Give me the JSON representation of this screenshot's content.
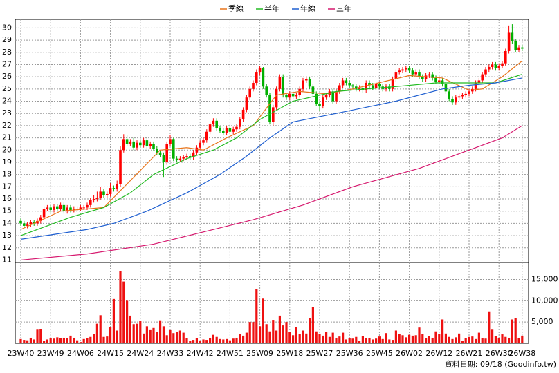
{
  "chart_data": {
    "type": "candlestick",
    "up_color": "#ff0000",
    "down_color": "#00b000",
    "grid": true,
    "ylim": [
      10.8,
      30.7
    ],
    "yticks": [
      11,
      12,
      13,
      14,
      15,
      16,
      17,
      18,
      19,
      20,
      21,
      22,
      23,
      24,
      25,
      26,
      27,
      28,
      29,
      30
    ],
    "note": "資料日期: 09/18 (Goodinfo.tw)",
    "categories": [
      "23W40",
      null,
      null,
      null,
      null,
      null,
      null,
      null,
      null,
      "23W49",
      null,
      null,
      null,
      null,
      null,
      null,
      null,
      null,
      "24W06",
      null,
      null,
      null,
      null,
      null,
      null,
      null,
      null,
      "24W15",
      null,
      null,
      null,
      null,
      null,
      null,
      null,
      null,
      "24W24",
      null,
      null,
      null,
      null,
      null,
      null,
      null,
      null,
      "24W33",
      null,
      null,
      null,
      null,
      null,
      null,
      null,
      null,
      "24W42",
      null,
      null,
      null,
      null,
      null,
      null,
      null,
      null,
      "24W51",
      null,
      null,
      null,
      null,
      null,
      null,
      null,
      null,
      "25W09",
      null,
      null,
      null,
      null,
      null,
      null,
      null,
      null,
      "25W18",
      null,
      null,
      null,
      null,
      null,
      null,
      null,
      null,
      "25W27",
      null,
      null,
      null,
      null,
      null,
      null,
      null,
      null,
      "25W36",
      null,
      null,
      null,
      null,
      null,
      null,
      null,
      null,
      "25W45",
      null,
      null,
      null,
      null,
      null,
      null,
      null,
      null,
      "26W02",
      null,
      null,
      null,
      null,
      null,
      null,
      null,
      null,
      "26W12",
      null,
      null,
      null,
      null,
      null,
      null,
      null,
      null,
      "26W21",
      null,
      null,
      null,
      null,
      null,
      null,
      null,
      null,
      "26W30",
      null,
      null,
      null,
      null,
      null,
      null,
      "26W38"
    ],
    "ohlc": [
      [
        14.2,
        14.4,
        13.8,
        14.0
      ],
      [
        14.0,
        14.2,
        13.6,
        13.8
      ],
      [
        13.8,
        14.1,
        13.6,
        13.9
      ],
      [
        13.9,
        14.3,
        13.7,
        14.1
      ],
      [
        14.1,
        14.3,
        13.8,
        14.0
      ],
      [
        14.0,
        14.4,
        13.8,
        14.2
      ],
      [
        14.2,
        14.7,
        14.0,
        14.5
      ],
      [
        14.5,
        15.4,
        14.3,
        15.2
      ],
      [
        15.2,
        15.5,
        15.0,
        15.3
      ],
      [
        15.3,
        15.5,
        14.9,
        15.1
      ],
      [
        15.1,
        15.6,
        14.9,
        15.4
      ],
      [
        15.4,
        15.6,
        15.0,
        15.2
      ],
      [
        15.2,
        15.7,
        15.0,
        15.5
      ],
      [
        15.5,
        15.7,
        14.8,
        15.0
      ],
      [
        15.0,
        15.5,
        14.8,
        15.3
      ],
      [
        15.3,
        15.5,
        14.9,
        15.1
      ],
      [
        15.1,
        15.4,
        14.9,
        15.2
      ],
      [
        15.2,
        15.4,
        15.0,
        15.2
      ],
      [
        15.2,
        15.5,
        15.0,
        15.3
      ],
      [
        15.3,
        15.5,
        15.1,
        15.3
      ],
      [
        15.3,
        15.7,
        15.1,
        15.5
      ],
      [
        15.5,
        16.1,
        15.3,
        15.9
      ],
      [
        15.9,
        16.3,
        15.7,
        16.0
      ],
      [
        16.0,
        16.6,
        15.8,
        16.1
      ],
      [
        16.1,
        17.0,
        15.9,
        16.6
      ],
      [
        16.6,
        16.8,
        16.1,
        16.3
      ],
      [
        16.3,
        16.6,
        16.1,
        16.4
      ],
      [
        16.4,
        17.3,
        16.2,
        16.9
      ],
      [
        16.9,
        17.1,
        16.6,
        16.8
      ],
      [
        16.8,
        17.5,
        16.6,
        17.2
      ],
      [
        17.2,
        20.3,
        17.0,
        20.0
      ],
      [
        20.0,
        21.3,
        19.8,
        20.9
      ],
      [
        20.9,
        21.2,
        20.3,
        20.5
      ],
      [
        20.5,
        20.9,
        20.3,
        20.7
      ],
      [
        20.7,
        21.0,
        20.0,
        20.2
      ],
      [
        20.2,
        20.8,
        20.0,
        20.6
      ],
      [
        20.6,
        20.8,
        20.2,
        20.4
      ],
      [
        20.4,
        21.0,
        20.2,
        20.8
      ],
      [
        20.8,
        21.0,
        20.1,
        20.3
      ],
      [
        20.3,
        20.7,
        20.1,
        20.5
      ],
      [
        20.5,
        20.7,
        19.9,
        20.1
      ],
      [
        20.1,
        20.3,
        19.6,
        19.8
      ],
      [
        19.8,
        20.0,
        19.4,
        19.6
      ],
      [
        19.6,
        19.8,
        17.8,
        19.0
      ],
      [
        19.0,
        20.7,
        18.8,
        20.5
      ],
      [
        20.5,
        21.2,
        20.3,
        20.9
      ],
      [
        20.9,
        21.0,
        19.1,
        19.3
      ],
      [
        19.3,
        19.5,
        19.0,
        19.2
      ],
      [
        19.2,
        19.5,
        19.0,
        19.3
      ],
      [
        19.3,
        19.6,
        19.1,
        19.4
      ],
      [
        19.4,
        19.7,
        19.2,
        19.5
      ],
      [
        19.5,
        19.7,
        19.2,
        19.4
      ],
      [
        19.4,
        20.0,
        19.2,
        19.8
      ],
      [
        19.8,
        20.4,
        19.6,
        20.2
      ],
      [
        20.2,
        20.8,
        20.0,
        20.6
      ],
      [
        20.6,
        21.0,
        20.4,
        20.8
      ],
      [
        20.8,
        21.7,
        20.6,
        21.5
      ],
      [
        21.5,
        22.3,
        21.3,
        22.1
      ],
      [
        22.1,
        22.6,
        21.9,
        22.4
      ],
      [
        22.4,
        22.6,
        21.6,
        21.8
      ],
      [
        21.8,
        22.0,
        21.4,
        21.6
      ],
      [
        21.6,
        21.8,
        21.2,
        21.4
      ],
      [
        21.4,
        22.0,
        21.2,
        21.8
      ],
      [
        21.8,
        22.0,
        21.3,
        21.5
      ],
      [
        21.5,
        21.9,
        21.3,
        21.7
      ],
      [
        21.7,
        22.1,
        21.5,
        21.9
      ],
      [
        21.9,
        22.7,
        21.7,
        22.5
      ],
      [
        22.5,
        23.5,
        22.3,
        23.3
      ],
      [
        23.3,
        24.5,
        23.1,
        24.3
      ],
      [
        24.3,
        25.2,
        24.1,
        25.0
      ],
      [
        25.0,
        25.7,
        24.8,
        25.5
      ],
      [
        25.5,
        26.6,
        25.3,
        26.4
      ],
      [
        26.4,
        26.9,
        26.1,
        26.7
      ],
      [
        26.7,
        26.8,
        25.0,
        25.2
      ],
      [
        25.2,
        25.4,
        24.3,
        24.5
      ],
      [
        24.5,
        24.7,
        22.1,
        22.3
      ],
      [
        22.3,
        23.7,
        22.0,
        23.5
      ],
      [
        23.5,
        25.2,
        23.3,
        25.0
      ],
      [
        25.0,
        26.2,
        24.8,
        26.0
      ],
      [
        26.0,
        26.2,
        24.3,
        24.5
      ],
      [
        24.5,
        24.7,
        24.1,
        24.3
      ],
      [
        24.3,
        24.8,
        24.1,
        24.6
      ],
      [
        24.6,
        24.8,
        24.2,
        24.4
      ],
      [
        24.4,
        24.7,
        24.2,
        24.5
      ],
      [
        24.5,
        25.2,
        24.3,
        25.0
      ],
      [
        25.0,
        25.9,
        24.8,
        25.7
      ],
      [
        25.7,
        26.0,
        25.5,
        25.8
      ],
      [
        25.8,
        26.0,
        25.0,
        25.2
      ],
      [
        25.2,
        25.4,
        24.4,
        24.6
      ],
      [
        24.6,
        24.8,
        23.6,
        23.8
      ],
      [
        23.8,
        24.0,
        23.2,
        23.6
      ],
      [
        23.6,
        24.5,
        23.4,
        24.3
      ],
      [
        24.3,
        24.7,
        24.1,
        24.5
      ],
      [
        24.5,
        25.0,
        24.3,
        24.8
      ],
      [
        24.8,
        25.0,
        23.8,
        24.0
      ],
      [
        24.0,
        25.0,
        23.8,
        24.8
      ],
      [
        24.8,
        25.5,
        24.6,
        25.3
      ],
      [
        25.3,
        25.9,
        25.1,
        25.7
      ],
      [
        25.7,
        25.9,
        25.3,
        25.5
      ],
      [
        25.5,
        25.7,
        25.1,
        25.3
      ],
      [
        25.3,
        25.4,
        25.0,
        25.2
      ],
      [
        25.2,
        25.4,
        24.8,
        25.0
      ],
      [
        25.0,
        25.3,
        24.8,
        25.1
      ],
      [
        25.1,
        25.3,
        24.7,
        24.9
      ],
      [
        24.9,
        25.7,
        24.7,
        25.5
      ],
      [
        25.5,
        25.7,
        25.1,
        25.3
      ],
      [
        25.3,
        25.5,
        24.9,
        25.1
      ],
      [
        25.1,
        25.6,
        24.9,
        25.4
      ],
      [
        25.4,
        25.6,
        25.0,
        25.2
      ],
      [
        25.2,
        25.4,
        24.8,
        25.0
      ],
      [
        25.0,
        25.4,
        24.8,
        25.2
      ],
      [
        25.2,
        25.4,
        24.8,
        25.0
      ],
      [
        25.0,
        26.0,
        24.8,
        25.8
      ],
      [
        25.8,
        26.6,
        25.6,
        26.4
      ],
      [
        26.4,
        26.7,
        26.2,
        26.5
      ],
      [
        26.5,
        26.8,
        26.3,
        26.6
      ],
      [
        26.6,
        26.9,
        26.4,
        26.7
      ],
      [
        26.7,
        26.9,
        26.3,
        26.5
      ],
      [
        26.5,
        26.7,
        26.0,
        26.2
      ],
      [
        26.2,
        26.6,
        26.0,
        26.4
      ],
      [
        26.4,
        26.6,
        25.8,
        26.0
      ],
      [
        26.0,
        26.2,
        25.6,
        25.8
      ],
      [
        25.8,
        26.3,
        25.6,
        26.1
      ],
      [
        26.1,
        26.4,
        25.9,
        26.2
      ],
      [
        26.2,
        26.4,
        25.7,
        25.9
      ],
      [
        25.9,
        26.1,
        25.4,
        25.6
      ],
      [
        25.6,
        25.9,
        25.4,
        25.7
      ],
      [
        25.7,
        25.9,
        25.2,
        25.4
      ],
      [
        25.4,
        25.6,
        24.6,
        24.8
      ],
      [
        24.8,
        25.0,
        24.0,
        24.2
      ],
      [
        24.2,
        24.4,
        23.7,
        23.9
      ],
      [
        23.9,
        24.5,
        23.7,
        24.3
      ],
      [
        24.3,
        24.6,
        24.1,
        24.4
      ],
      [
        24.4,
        24.7,
        24.2,
        24.5
      ],
      [
        24.5,
        24.8,
        24.3,
        24.6
      ],
      [
        24.6,
        25.0,
        24.4,
        24.8
      ],
      [
        24.8,
        25.2,
        24.6,
        25.0
      ],
      [
        25.0,
        25.7,
        24.8,
        25.5
      ],
      [
        25.5,
        25.9,
        25.3,
        25.7
      ],
      [
        25.7,
        26.4,
        25.5,
        26.2
      ],
      [
        26.2,
        26.8,
        26.0,
        26.6
      ],
      [
        26.6,
        27.0,
        26.4,
        26.8
      ],
      [
        26.8,
        27.2,
        26.6,
        27.0
      ],
      [
        27.0,
        27.2,
        26.5,
        26.7
      ],
      [
        26.7,
        27.1,
        26.5,
        26.9
      ],
      [
        26.9,
        27.3,
        26.7,
        27.1
      ],
      [
        27.1,
        28.3,
        26.9,
        28.1
      ],
      [
        28.1,
        30.2,
        27.9,
        29.6
      ],
      [
        29.6,
        30.3,
        28.7,
        28.9
      ],
      [
        28.9,
        29.1,
        28.0,
        28.2
      ],
      [
        28.2,
        28.6,
        28.0,
        28.4
      ],
      [
        28.4,
        28.6,
        28.1,
        28.3
      ]
    ],
    "series": [
      {
        "name": "季線",
        "color": "#e8741a",
        "x": [
          0,
          12,
          25,
          33,
          42,
          50,
          55,
          62,
          70,
          77,
          84,
          92,
          100,
          117,
          127,
          135,
          139,
          145,
          151
        ],
        "values": [
          13.5,
          15.0,
          15.3,
          17.5,
          20.0,
          20.2,
          20.0,
          21.0,
          22.0,
          24.5,
          24.8,
          24.6,
          25.0,
          26.1,
          25.9,
          24.9,
          25.0,
          26.0,
          27.3
        ]
      },
      {
        "name": "半年",
        "color": "#22bb22",
        "x": [
          0,
          15,
          25,
          33,
          40,
          50,
          58,
          65,
          72,
          82,
          95,
          113,
          125,
          135,
          143,
          151
        ],
        "values": [
          13.0,
          14.5,
          15.3,
          16.5,
          18.0,
          19.3,
          20.0,
          21.0,
          22.5,
          24.0,
          24.8,
          25.2,
          25.5,
          25.5,
          25.5,
          26.2
        ]
      },
      {
        "name": "年線",
        "color": "#1f5fd0",
        "x": [
          0,
          20,
          28,
          38,
          50,
          60,
          68,
          75,
          82,
          95,
          113,
          127,
          135,
          143,
          151
        ],
        "values": [
          12.7,
          13.5,
          14.0,
          15.0,
          16.5,
          18.0,
          19.5,
          21.0,
          22.3,
          23.0,
          24.0,
          25.0,
          25.3,
          25.5,
          25.9
        ]
      },
      {
        "name": "三年",
        "color": "#d6186e",
        "x": [
          0,
          20,
          40,
          55,
          70,
          85,
          100,
          120,
          133,
          145,
          151
        ],
        "values": [
          11.0,
          11.5,
          12.3,
          13.3,
          14.3,
          15.5,
          17.0,
          18.5,
          19.8,
          21.0,
          22.0
        ]
      }
    ],
    "volume": {
      "color": "#ee1111",
      "ylim": [
        0,
        18000
      ],
      "yticks": [
        {
          "value": 5000,
          "label": "5,000"
        },
        {
          "value": 10000,
          "label": "10,000"
        },
        {
          "value": 15000,
          "label": "15,000"
        }
      ],
      "values": [
        1000,
        800,
        700,
        1300,
        900,
        3200,
        3300,
        600,
        900,
        1300,
        1100,
        1400,
        1200,
        1300,
        1200,
        1800,
        1300,
        700,
        300,
        1000,
        1200,
        1500,
        2200,
        4600,
        6600,
        1500,
        1600,
        3800,
        10400,
        3000,
        17000,
        14500,
        10000,
        6500,
        4500,
        4600,
        5200,
        2300,
        4000,
        3100,
        3600,
        2600,
        5400,
        4000,
        1900,
        3100,
        2400,
        2600,
        3000,
        2500,
        1200,
        600,
        800,
        1200,
        500,
        900,
        800,
        1200,
        2000,
        1500,
        1000,
        900,
        1000,
        700,
        1100,
        1300,
        2200,
        1800,
        2500,
        5000,
        5000,
        12800,
        4000,
        10500,
        4500,
        2800,
        5500,
        3000,
        6500,
        4200,
        5000,
        2700,
        1900,
        3800,
        2200,
        3000,
        2300,
        6000,
        8500,
        2800,
        2200,
        1800,
        2600,
        1500,
        2500,
        1300,
        1600,
        2500,
        900,
        1200,
        1100,
        1500,
        500,
        1700,
        1200,
        1300,
        900,
        1100,
        1600,
        1000,
        2400,
        900,
        800,
        3000,
        2200,
        1900,
        1400,
        2000,
        1800,
        1900,
        3700,
        2200,
        1200,
        1700,
        1300,
        2800,
        2200,
        5600,
        2300,
        1500,
        1000,
        1400,
        2300,
        600,
        1200,
        1500,
        1600,
        1000,
        2500,
        1200,
        1100,
        7500,
        3200,
        1700,
        1200,
        2100,
        1500,
        1300,
        5600,
        6000,
        1300,
        1800
      ]
    }
  }
}
